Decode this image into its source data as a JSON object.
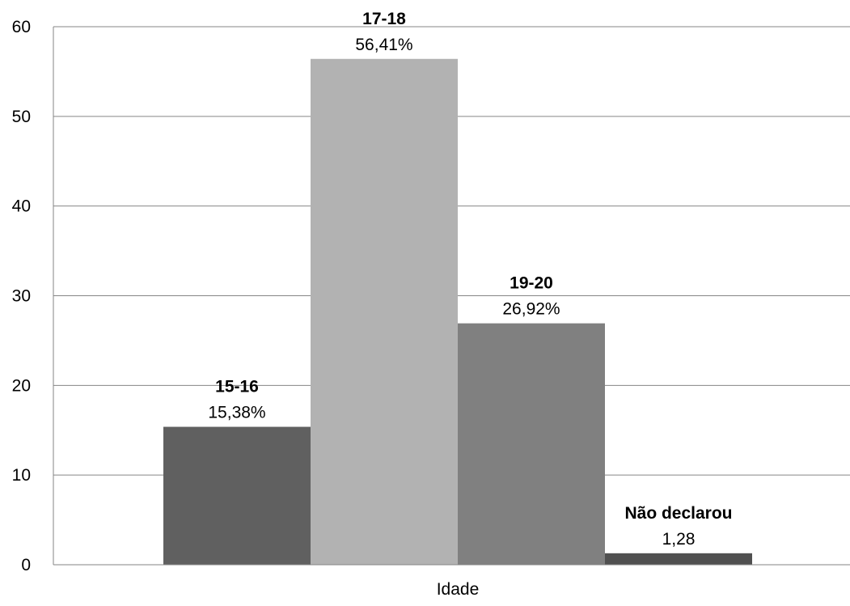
{
  "chart_data": {
    "type": "bar",
    "title": "",
    "xlabel": "Idade",
    "ylabel": "",
    "ylim": [
      0,
      60
    ],
    "yticks": [
      0,
      10,
      20,
      30,
      40,
      50,
      60
    ],
    "grid": true,
    "legend": "none",
    "series": [
      {
        "category": "15-16",
        "value": 15.38,
        "value_label": "15,38%",
        "color": "#606060"
      },
      {
        "category": "17-18",
        "value": 56.41,
        "value_label": "56,41%",
        "color": "#b2b2b2"
      },
      {
        "category": "19-20",
        "value": 26.92,
        "value_label": "26,92%",
        "color": "#808080"
      },
      {
        "category": "Não declarou",
        "value": 1.28,
        "value_label": "1,28",
        "color": "#505050"
      }
    ]
  }
}
